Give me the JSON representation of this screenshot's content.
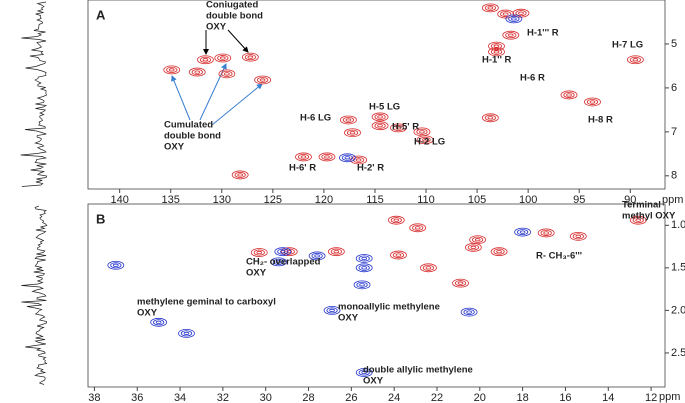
{
  "chart_data": [
    {
      "type": "contour",
      "panel": "A",
      "xlim": [
        143.1,
        86.6
      ],
      "ylim": [
        4.0,
        8.3
      ],
      "xticks": [
        140,
        135,
        130,
        125,
        120,
        115,
        110,
        105,
        100,
        95,
        90
      ],
      "yticks": [
        5,
        6,
        7,
        8
      ],
      "axis_unit": "ppm",
      "series": [
        {
          "color": "#d62728",
          "x": [
            131.6,
            129.9,
            127.2,
            134.9,
            132.4,
            129.5,
            126.0,
            103.7,
            102.2,
            103.1,
            103.1,
            101.7,
            100.7,
            96.0,
            93.7,
            89.5,
            103.7,
            117.6,
            114.5,
            114.5,
            112.7,
            110.4,
            110.1,
            122.0,
            119.7,
            116.6,
            117.2,
            128.2
          ],
          "y": [
            5.36,
            5.32,
            5.3,
            5.59,
            5.64,
            5.68,
            5.82,
            4.18,
            4.32,
            5.05,
            5.18,
            4.8,
            4.3,
            6.16,
            6.32,
            5.36,
            6.68,
            6.73,
            6.66,
            6.86,
            6.91,
            7.0,
            7.18,
            7.57,
            7.57,
            7.64,
            7.02,
            7.98
          ]
        },
        {
          "color": "#2233cc",
          "x": [
            101.4,
            117.7
          ],
          "y": [
            4.43,
            7.59
          ]
        }
      ],
      "annotations": [
        [
          "Coniugated",
          "double bond",
          "OXY"
        ],
        [
          "Cumulated",
          "double bond",
          "OXY"
        ],
        [
          "H-1''' R"
        ],
        [
          "H-7 LG"
        ],
        [
          "H-1'' R"
        ],
        [
          "H-6 R"
        ],
        [
          "H-8 R"
        ],
        [
          "H-5 LG"
        ],
        [
          "H-6 LG"
        ],
        [
          "H-5' R"
        ],
        [
          "H-2 LG"
        ],
        [
          "H-6' R"
        ],
        [
          "H-2' R"
        ]
      ]
    },
    {
      "type": "contour",
      "panel": "B",
      "xlim": [
        38.3,
        11.35
      ],
      "ylim": [
        0.75,
        2.9
      ],
      "xticks": [
        38,
        36,
        34,
        32,
        30,
        28,
        26,
        24,
        22,
        20,
        18,
        16,
        14,
        12
      ],
      "yticks": [
        {
          "value": 1,
          "label": "1.0"
        },
        1.5,
        {
          "value": 2,
          "label": "2.0"
        },
        2.5
      ],
      "axis_unit": "ppm",
      "series": [
        {
          "color": "#d62728",
          "x": [
            23.9,
            22.9,
            20.1,
            20.3,
            16.9,
            15.4,
            12.6,
            26.7,
            23.8,
            28.9,
            30.3,
            22.4,
            20.9,
            19.1
          ],
          "y": [
            0.94,
            1.03,
            1.17,
            1.26,
            1.09,
            1.13,
            0.94,
            1.31,
            1.35,
            1.31,
            1.32,
            1.5,
            1.68,
            1.31
          ]
        },
        {
          "color": "#2233cc",
          "x": [
            29.2,
            29.4,
            27.6,
            25.4,
            25.4,
            25.5,
            26.9,
            20.5,
            35.0,
            33.7,
            25.4,
            37.0,
            18.0
          ],
          "y": [
            1.31,
            1.43,
            1.36,
            1.39,
            1.5,
            1.7,
            2.0,
            2.02,
            2.14,
            2.27,
            2.73,
            1.47,
            1.08
          ]
        }
      ],
      "annotations": [
        [
          "Terminal",
          "methyl OXY"
        ],
        [
          "R- CH₃-6'''"
        ],
        [
          "CH₂- overlapped",
          "OXY"
        ],
        [
          "methylene geminal to carboxyl",
          "OXY"
        ],
        [
          "monoallylic methylene",
          "OXY"
        ],
        [
          "double allylic methylene",
          "OXY"
        ]
      ]
    }
  ]
}
